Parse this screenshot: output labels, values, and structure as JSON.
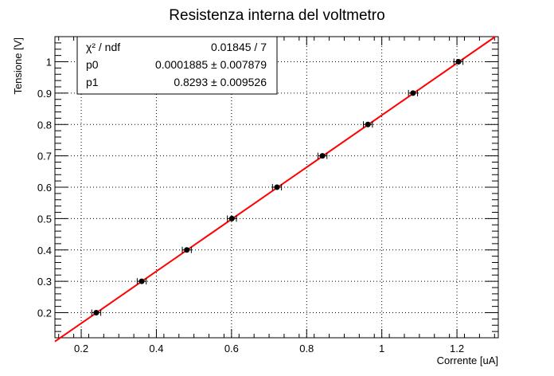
{
  "chart_data": {
    "type": "scatter",
    "title": "Resistenza interna del voltmetro",
    "xlabel": "Corrente [uA]",
    "ylabel": "Tensione [V]",
    "xlim": [
      0.13,
      1.31
    ],
    "ylim": [
      0.12,
      1.08
    ],
    "grid": true,
    "x_ticks": [
      0.2,
      0.4,
      0.6,
      0.8,
      1.0,
      1.2
    ],
    "x_tick_labels": [
      "0.2",
      "0.4",
      "0.6",
      "0.8",
      "1",
      "1.2"
    ],
    "y_ticks": [
      0.2,
      0.3,
      0.4,
      0.5,
      0.6,
      0.7,
      0.8,
      0.9,
      1.0
    ],
    "y_tick_labels": [
      "0.2",
      "0.3",
      "0.4",
      "0.5",
      "0.6",
      "0.7",
      "0.8",
      "0.9",
      "1"
    ],
    "series": [
      {
        "x": [
          0.24,
          0.361,
          0.481,
          0.601,
          0.721,
          0.842,
          0.963,
          1.083,
          1.204
        ],
        "y": [
          0.2,
          0.3,
          0.4,
          0.5,
          0.6,
          0.7,
          0.8,
          0.9,
          1.0
        ],
        "x_err": 0.012,
        "marker_color": "#000000"
      }
    ],
    "fit": {
      "function": "linear",
      "p0": 0.0001885,
      "p1": 0.8293,
      "color": "#ff0000"
    },
    "stats_box": {
      "position": "top-left",
      "rows": [
        {
          "label": "χ² / ndf",
          "value": "0.01845 / 7"
        },
        {
          "label": "p0",
          "value": "0.0001885 ± 0.007879"
        },
        {
          "label": "p1",
          "value": "0.8293 ± 0.009526"
        }
      ]
    }
  }
}
